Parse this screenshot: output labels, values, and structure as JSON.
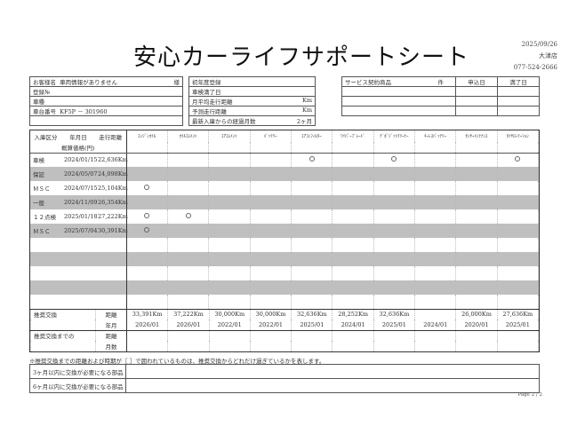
{
  "title": "安心カーライフサポートシート",
  "shop": {
    "date": "2025/09/26",
    "store": "大津店",
    "phone": "077-524-2666"
  },
  "customer": {
    "name_label": "お客様名",
    "name_value": "車両情報がありません",
    "honorific": "様",
    "reg_no_label": "登録№",
    "model_label": "車種",
    "chassis_label": "車台番号",
    "chassis_value": "KF5P － 301960"
  },
  "vehicle": {
    "first_reg_label": "初年度登録",
    "inspection_label": "車検満了日",
    "monthly_label": "月平均走行距離",
    "monthly_unit": "Km",
    "forecast_label": "予測走行距離",
    "forecast_unit": "Km",
    "months_label": "最新入庫からの経過月数",
    "months_value": "2ヶ月"
  },
  "service": {
    "product_label": "サービス契約商品",
    "count_label": "件",
    "apply_label": "申込日",
    "end_label": "満了日"
  },
  "history": {
    "headers": {
      "type": "入庫区分",
      "date": "年月日",
      "distance": "走行距離",
      "price": "概算価格(円)"
    },
    "parts": [
      "ｴﾝｼﾞﾝｵｲﾙ",
      "ｵｲﾙｴﾚﾒﾝﾄ",
      "ｴｱｴﾚﾒﾝﾄ",
      "ﾊﾞｯﾃﾘｰ",
      "ｴｱｺﾝﾌｨﾙﾀｰ",
      "ﾜｲﾊﾟｰﾌﾞﾚｰﾄﾞ",
      "ﾃﾞﾎﾟｼﾞｯﾄｸﾘｰﾅｰ",
      "ｷｰﾚｽﾊﾞｯﾃﾘｰ",
      "ｾﾝｻｰﾒﾝﾃﾅﾝｽ",
      "ﾀｲﾔﾛｰﾃｰｼｮﾝ"
    ],
    "rows": [
      {
        "type": "車検",
        "date": "2024/01/15",
        "distance": "22,636Km",
        "marks": [
          0,
          0,
          0,
          0,
          1,
          0,
          1,
          0,
          0,
          1
        ]
      },
      {
        "type": "保証",
        "date": "2024/05/07",
        "distance": "24,098Km",
        "marks": [
          0,
          0,
          0,
          0,
          0,
          0,
          0,
          0,
          0,
          0
        ]
      },
      {
        "type": "ＭＳＣ",
        "date": "2024/07/15",
        "distance": "25,104Km",
        "marks": [
          1,
          0,
          0,
          0,
          0,
          0,
          0,
          0,
          0,
          0
        ]
      },
      {
        "type": "一般",
        "date": "2024/11/09",
        "distance": "26,354Km",
        "marks": [
          0,
          0,
          0,
          0,
          0,
          0,
          0,
          0,
          0,
          0
        ]
      },
      {
        "type": "１２点検",
        "date": "2025/01/18",
        "distance": "27,222Km",
        "marks": [
          1,
          1,
          0,
          0,
          0,
          0,
          0,
          0,
          0,
          0
        ]
      },
      {
        "type": "ＭＳＣ",
        "date": "2025/07/04",
        "distance": "30,391Km",
        "marks": [
          1,
          0,
          0,
          0,
          0,
          0,
          0,
          0,
          0,
          0
        ]
      }
    ],
    "empty_rows": 5
  },
  "recommend": {
    "label": "推奨交換",
    "dist_label": "距離",
    "month_label": "年月",
    "distances": [
      "33,391Km",
      "37,222Km",
      "30,000Km",
      "30,000Km",
      "32,636Km",
      "28,252Km",
      "32,636Km",
      "",
      "26,000Km",
      "27,636Km"
    ],
    "dates": [
      "2026/01",
      "2026/01",
      "2022/01",
      "2022/01",
      "2025/01",
      "2024/01",
      "2025/01",
      "2024/01",
      "2020/01",
      "2025/01"
    ],
    "until_label": "推奨交換までの",
    "until_dist": "距離",
    "until_months": "月数"
  },
  "note": "※推奨交換までの距離および時期が［ ］で囲われているものは、推奨交換からどれだけ過ぎているかを表します。",
  "due": {
    "three": "3ヶ月以内に交換が必要になる部品",
    "six": "6ヶ月以内に交換が必要になる部品"
  },
  "page": "Page 2 / 2"
}
